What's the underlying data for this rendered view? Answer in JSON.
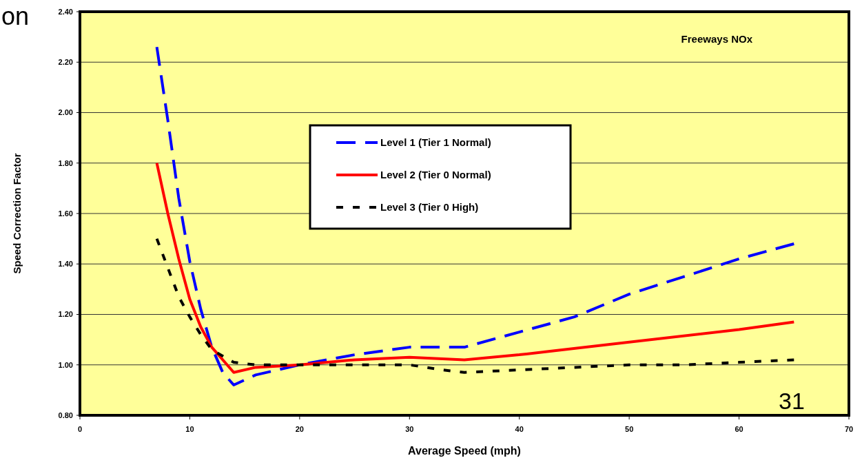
{
  "chart_data": {
    "type": "line",
    "xlabel": "Average Speed (mph)",
    "ylabel": "Speed Correction Factor",
    "annotations": [
      "on",
      "Freeways NOx",
      "31"
    ],
    "xlim": [
      0,
      70
    ],
    "xticks": [
      0,
      10,
      20,
      30,
      40,
      50,
      60,
      70
    ],
    "ylim": [
      0.8,
      2.4
    ],
    "yticks": [
      {
        "value": 0.8,
        "label": "0.80"
      },
      {
        "value": 1.0,
        "label": "1.00"
      },
      {
        "value": 1.2,
        "label": "1.20"
      },
      {
        "value": 1.4,
        "label": "1.40"
      },
      {
        "value": 1.6,
        "label": "1.60"
      },
      {
        "value": 1.8,
        "label": "1.80"
      },
      {
        "value": 2.0,
        "label": "2.00"
      },
      {
        "value": 2.2,
        "label": "2.20"
      },
      {
        "value": 2.4,
        "label": "2.40"
      }
    ],
    "grid": "y",
    "legend": "top",
    "series": [
      {
        "name": "Level 1 (Tier 1 Normal)",
        "color": "#0000ff",
        "line_style": "dashed",
        "x": [
          7,
          8,
          9,
          10,
          11,
          12,
          13,
          14,
          16,
          20,
          25,
          30,
          35,
          40,
          45,
          50,
          55,
          60,
          65
        ],
        "values": [
          2.26,
          1.97,
          1.66,
          1.41,
          1.22,
          1.07,
          0.97,
          0.92,
          0.96,
          1.0,
          1.04,
          1.07,
          1.07,
          1.13,
          1.19,
          1.28,
          1.35,
          1.42,
          1.48
        ]
      },
      {
        "name": "Level 2 (Tier 0 Normal)",
        "color": "#ff0000",
        "line_style": "solid",
        "x": [
          7,
          8,
          9,
          10,
          11,
          12,
          14,
          16,
          20,
          25,
          30,
          35,
          40,
          50,
          60,
          65
        ],
        "values": [
          1.8,
          1.6,
          1.42,
          1.26,
          1.15,
          1.07,
          0.97,
          0.99,
          1.0,
          1.02,
          1.03,
          1.02,
          1.04,
          1.09,
          1.14,
          1.17
        ]
      },
      {
        "name": "Level 3 (Tier 0 High)",
        "color": "#000000",
        "line_style": "dotted",
        "x": [
          7,
          9,
          10,
          11,
          12,
          14,
          16,
          20,
          25,
          30,
          33,
          35,
          40,
          45,
          50,
          55,
          60,
          65
        ],
        "values": [
          1.5,
          1.27,
          1.19,
          1.12,
          1.06,
          1.01,
          1.0,
          1.0,
          1.0,
          1.0,
          0.98,
          0.97,
          0.98,
          0.99,
          1.0,
          1.0,
          1.01,
          1.02
        ]
      }
    ]
  }
}
